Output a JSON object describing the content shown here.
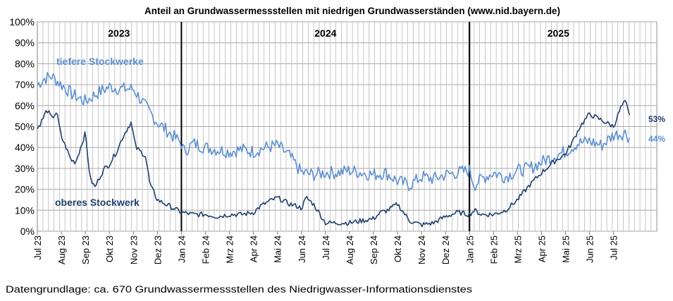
{
  "chart_data": {
    "type": "line",
    "title": "Anteil an Grundwassermessstellen mit niedrigen Grundwasserständen (www.nid.bayern.de)",
    "footer": "Datengrundlage: ca. 670 Grundwassermessstellen des Niedrigwasser-Informationsdienstes",
    "y_ticks": [
      "0%",
      "10%",
      "20%",
      "30%",
      "40%",
      "50%",
      "60%",
      "70%",
      "80%",
      "90%",
      "100%"
    ],
    "ylim": [
      0,
      100
    ],
    "grid": true,
    "x_labels": [
      "Jul 23",
      "Aug 23",
      "Sep 23",
      "Okt 23",
      "Nov 23",
      "Dez 23",
      "Jan 24",
      "Feb 24",
      "Mrz 24",
      "Apr 24",
      "Mai 24",
      "Jun 24",
      "Jul 24",
      "Aug 24",
      "Sep 24",
      "Okt 24",
      "Nov 24",
      "Dez 24",
      "Jan 25",
      "Feb 25",
      "Mrz 25",
      "Apr 25",
      "Mai 25",
      "Jun 25",
      "Jul 25"
    ],
    "years": [
      "2023",
      "2024",
      "2025"
    ],
    "series": [
      {
        "name": "tiefere Stockwerke",
        "color": "#5b8fd0",
        "end_label": "44%",
        "x_months": [
          0,
          0.3,
          0.6,
          1.0,
          1.5,
          2.0,
          2.5,
          3.0,
          3.5,
          4.0,
          4.3,
          4.6,
          5.0,
          5.5,
          6.0,
          6.1,
          6.5,
          7.0,
          7.5,
          8.0,
          8.5,
          9.0,
          9.5,
          10.0,
          10.5,
          11.0,
          11.5,
          12.0,
          12.5,
          13.0,
          13.5,
          14.0,
          14.5,
          15.0,
          15.5,
          16.0,
          16.5,
          17.0,
          17.5,
          18.0,
          18.2,
          18.5,
          19.0,
          19.5,
          20.0,
          20.5,
          21.0,
          21.5,
          22.0,
          22.5,
          23.0,
          23.5,
          24.0,
          24.5,
          24.7
        ],
        "values": [
          70,
          73,
          74,
          70,
          65,
          62,
          66,
          69,
          68,
          68,
          63,
          58,
          52,
          47,
          42,
          38,
          42,
          40,
          39,
          38,
          39,
          38,
          40,
          41,
          36,
          28,
          27,
          28,
          28,
          29,
          28,
          27,
          28,
          24,
          22,
          26,
          25,
          27,
          28,
          29,
          22,
          25,
          28,
          26,
          29,
          30,
          33,
          36,
          38,
          42,
          43,
          41,
          46,
          47,
          44
        ]
      },
      {
        "name": "oberes Stockwerk",
        "color": "#1f3f6e",
        "end_label": "53%",
        "x_months": [
          0,
          0.2,
          0.4,
          0.6,
          0.8,
          1.0,
          1.2,
          1.4,
          1.6,
          1.8,
          2.0,
          2.2,
          2.4,
          2.6,
          2.8,
          3.0,
          3.3,
          3.6,
          3.9,
          4.1,
          4.3,
          4.5,
          4.7,
          5.0,
          5.5,
          6.0,
          6.5,
          7.0,
          7.5,
          8.0,
          8.5,
          9.0,
          9.3,
          9.6,
          10.0,
          10.5,
          10.8,
          11.0,
          11.2,
          11.5,
          12.0,
          12.5,
          13.0,
          13.5,
          14.0,
          14.3,
          14.6,
          15.0,
          15.5,
          16.0,
          16.5,
          17.0,
          17.5,
          18.0,
          18.2,
          18.5,
          19.0,
          19.5,
          20.0,
          20.5,
          21.0,
          21.5,
          22.0,
          22.3,
          22.6,
          23.0,
          23.5,
          24.0,
          24.3,
          24.5,
          24.7
        ],
        "values": [
          49,
          53,
          58,
          54,
          57,
          45,
          40,
          34,
          33,
          40,
          47,
          25,
          21,
          26,
          30,
          32,
          38,
          46,
          52,
          40,
          38,
          36,
          22,
          15,
          12,
          9,
          8,
          8,
          7,
          8,
          8,
          9,
          12,
          14,
          16,
          13,
          12,
          11,
          16,
          13,
          4,
          4,
          4,
          5,
          6,
          9,
          10,
          13,
          5,
          3,
          4,
          7,
          9,
          8,
          10,
          8,
          8,
          10,
          15,
          22,
          28,
          33,
          37,
          43,
          50,
          56,
          53,
          50,
          59,
          62,
          53
        ]
      }
    ]
  }
}
